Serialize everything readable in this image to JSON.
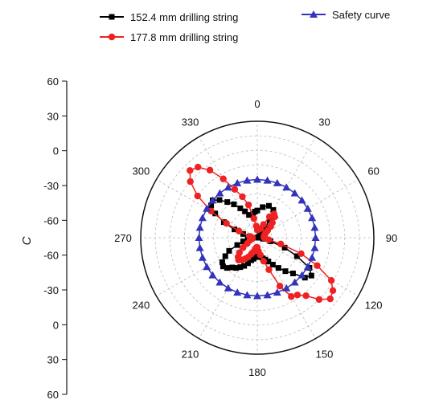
{
  "chart_data": {
    "type": "polar-line",
    "angle_ticks": [
      "0",
      "30",
      "60",
      "90",
      "120",
      "150",
      "180",
      "210",
      "240",
      "270",
      "300",
      "330"
    ],
    "radial_axis": {
      "label": "C",
      "tick_labels": [
        "60",
        "30",
        "0",
        "-30",
        "-60",
        "-60",
        "-30",
        "0",
        "30",
        "60"
      ],
      "range": [
        -60,
        60
      ],
      "grid_ring_values": [
        -60,
        -45,
        -30,
        -15,
        0,
        15,
        30,
        45
      ]
    },
    "legend_placement": "top",
    "series": [
      {
        "name": "152.4 mm drilling string",
        "color": "#000000",
        "marker": "square",
        "points": [
          [
            0,
            -32
          ],
          [
            10,
            -28
          ],
          [
            20,
            -25
          ],
          [
            30,
            -27
          ],
          [
            35,
            -38
          ],
          [
            40,
            -48
          ],
          [
            45,
            -54
          ],
          [
            50,
            -55
          ],
          [
            55,
            -57
          ],
          [
            60,
            -58
          ],
          [
            70,
            -59
          ],
          [
            80,
            -59
          ],
          [
            90,
            -59
          ],
          [
            100,
            -54
          ],
          [
            105,
            -46
          ],
          [
            110,
            -30
          ],
          [
            115,
            -15
          ],
          [
            120,
            2
          ],
          [
            125,
            8
          ],
          [
            130,
            4
          ],
          [
            135,
            -8
          ],
          [
            140,
            -15
          ],
          [
            145,
            -22
          ],
          [
            150,
            -28
          ],
          [
            155,
            -33
          ],
          [
            160,
            -36
          ],
          [
            165,
            -38
          ],
          [
            170,
            -40
          ],
          [
            175,
            -40
          ],
          [
            180,
            -42
          ],
          [
            185,
            -40
          ],
          [
            190,
            -38
          ],
          [
            195,
            -36
          ],
          [
            200,
            -32
          ],
          [
            205,
            -28
          ],
          [
            210,
            -25
          ],
          [
            215,
            -22
          ],
          [
            220,
            -20
          ],
          [
            225,
            -16
          ],
          [
            230,
            -14
          ],
          [
            235,
            -16
          ],
          [
            240,
            -22
          ],
          [
            245,
            -28
          ],
          [
            250,
            -38
          ],
          [
            255,
            -45
          ],
          [
            260,
            -50
          ],
          [
            270,
            -55
          ],
          [
            280,
            -52
          ],
          [
            285,
            -45
          ],
          [
            290,
            -35
          ],
          [
            295,
            -22
          ],
          [
            300,
            -10
          ],
          [
            305,
            -2
          ],
          [
            310,
            0
          ],
          [
            315,
            -5
          ],
          [
            320,
            -12
          ],
          [
            325,
            -18
          ],
          [
            330,
            -25
          ],
          [
            335,
            -30
          ],
          [
            340,
            -35
          ],
          [
            350,
            -35
          ],
          [
            355,
            -33
          ]
        ]
      },
      {
        "name": "177.8 mm  drilling string",
        "color": "#ee2222",
        "marker": "circle",
        "points": [
          [
            0,
            -52
          ],
          [
            10,
            -51
          ],
          [
            20,
            -50
          ],
          [
            25,
            -45
          ],
          [
            30,
            -35
          ],
          [
            35,
            -30
          ],
          [
            40,
            -32
          ],
          [
            45,
            -38
          ],
          [
            50,
            -42
          ],
          [
            55,
            -47
          ],
          [
            60,
            -50
          ],
          [
            70,
            -52
          ],
          [
            80,
            -53
          ],
          [
            90,
            -53
          ],
          [
            100,
            -48
          ],
          [
            105,
            -35
          ],
          [
            110,
            -12
          ],
          [
            115,
            8
          ],
          [
            120,
            28
          ],
          [
            125,
            35
          ],
          [
            130,
            38
          ],
          [
            135,
            30
          ],
          [
            140,
            18
          ],
          [
            145,
            12
          ],
          [
            150,
            10
          ],
          [
            155,
            -5
          ],
          [
            160,
            -25
          ],
          [
            165,
            -35
          ],
          [
            170,
            -42
          ],
          [
            175,
            -46
          ],
          [
            180,
            -50
          ],
          [
            185,
            -50
          ],
          [
            190,
            -48
          ],
          [
            195,
            -45
          ],
          [
            200,
            -42
          ],
          [
            205,
            -38
          ],
          [
            210,
            -35
          ],
          [
            215,
            -32
          ],
          [
            220,
            -30
          ],
          [
            225,
            -32
          ],
          [
            230,
            -36
          ],
          [
            235,
            -42
          ],
          [
            240,
            -48
          ],
          [
            250,
            -52
          ],
          [
            260,
            -55
          ],
          [
            270,
            -55
          ],
          [
            280,
            -52
          ],
          [
            290,
            -40
          ],
          [
            295,
            -25
          ],
          [
            300,
            -5
          ],
          [
            305,
            15
          ],
          [
            310,
            30
          ],
          [
            315,
            38
          ],
          [
            320,
            35
          ],
          [
            325,
            25
          ],
          [
            330,
            10
          ],
          [
            335,
            -5
          ],
          [
            340,
            -15
          ],
          [
            345,
            -25
          ],
          [
            350,
            -40
          ],
          [
            355,
            -48
          ]
        ]
      },
      {
        "name": "Safety curve",
        "color": "#3333bb",
        "marker": "triangle",
        "points": [
          [
            0,
            0
          ],
          [
            10,
            0
          ],
          [
            20,
            0
          ],
          [
            30,
            0
          ],
          [
            40,
            0
          ],
          [
            50,
            0
          ],
          [
            60,
            0
          ],
          [
            70,
            0
          ],
          [
            80,
            0
          ],
          [
            90,
            0
          ],
          [
            100,
            0
          ],
          [
            110,
            0
          ],
          [
            120,
            0
          ],
          [
            130,
            0
          ],
          [
            140,
            0
          ],
          [
            150,
            0
          ],
          [
            160,
            0
          ],
          [
            170,
            0
          ],
          [
            180,
            0
          ],
          [
            190,
            0
          ],
          [
            200,
            0
          ],
          [
            210,
            0
          ],
          [
            220,
            0
          ],
          [
            230,
            0
          ],
          [
            240,
            0
          ],
          [
            250,
            0
          ],
          [
            260,
            0
          ],
          [
            270,
            0
          ],
          [
            280,
            0
          ],
          [
            290,
            0
          ],
          [
            300,
            0
          ],
          [
            310,
            0
          ],
          [
            320,
            0
          ],
          [
            330,
            0
          ],
          [
            340,
            0
          ],
          [
            350,
            0
          ]
        ]
      }
    ]
  }
}
